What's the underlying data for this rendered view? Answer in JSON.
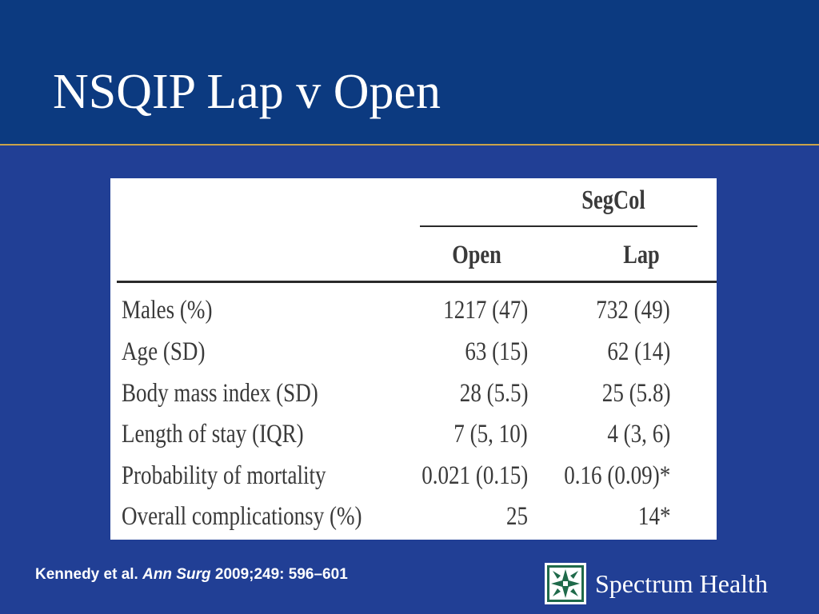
{
  "slide": {
    "title": "NSQIP Lap v Open"
  },
  "table": {
    "group_label": "SegCol",
    "columns": [
      "Open",
      "Lap"
    ],
    "rows": [
      {
        "label": "Males (%)",
        "open": "1217 (47)",
        "lap": "732 (49)"
      },
      {
        "label": "Age (SD)",
        "open": "63 (15)",
        "lap": "62 (14)"
      },
      {
        "label": "Body mass index (SD)",
        "open": "28 (5.5)",
        "lap": "25 (5.8)"
      },
      {
        "label": "Length of stay (IQR)",
        "open": "7 (5, 10)",
        "lap": "4 (3, 6)"
      },
      {
        "label": "Probability of mortality",
        "open": "0.021 (0.15)",
        "lap": "0.16 (0.09)*"
      },
      {
        "label": "Overall complicationsy (%)",
        "open": "25",
        "lap": "14*"
      }
    ]
  },
  "footer": {
    "citation_authors": "Kennedy et al.",
    "citation_journal": "Ann Surg",
    "citation_details": "2009;249: 596–601",
    "brand_name": "Spectrum Health",
    "logo_icon": "spectrum-health-logo-icon",
    "colors": {
      "background": "#213f95",
      "header": "#0c3a80",
      "rule": "#c9a34a",
      "logo_green": "#1f6a4a"
    }
  }
}
